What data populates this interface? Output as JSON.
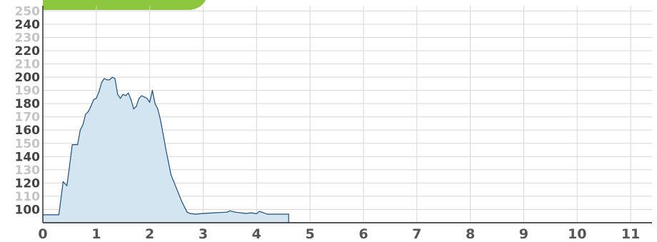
{
  "colors": {
    "accent_tab": "#8dc63f",
    "area_fill": "#d4e5f2",
    "area_stroke": "#1b4f7a",
    "grid": "#d7d7d7",
    "axis": "#222222"
  },
  "chart_data": {
    "type": "area",
    "title": "",
    "xlabel": "",
    "ylabel": "",
    "xlim": [
      0,
      11.4
    ],
    "ylim": [
      90,
      254
    ],
    "grid": true,
    "legend": "none",
    "x_ticks": [
      "0",
      "1",
      "2",
      "3",
      "4",
      "5",
      "6",
      "7",
      "8",
      "9",
      "10",
      "11"
    ],
    "y_ticks": [
      {
        "value": 100,
        "label": "100",
        "major": true
      },
      {
        "value": 110,
        "label": "110",
        "major": false
      },
      {
        "value": 120,
        "label": "120",
        "major": true
      },
      {
        "value": 130,
        "label": "130",
        "major": false
      },
      {
        "value": 140,
        "label": "140",
        "major": true
      },
      {
        "value": 150,
        "label": "150",
        "major": false
      },
      {
        "value": 160,
        "label": "160",
        "major": true
      },
      {
        "value": 170,
        "label": "170",
        "major": false
      },
      {
        "value": 180,
        "label": "180",
        "major": true
      },
      {
        "value": 190,
        "label": "190",
        "major": false
      },
      {
        "value": 200,
        "label": "200",
        "major": true
      },
      {
        "value": 210,
        "label": "210",
        "major": false
      },
      {
        "value": 220,
        "label": "220",
        "major": true
      },
      {
        "value": 230,
        "label": "230",
        "major": false
      },
      {
        "value": 240,
        "label": "240",
        "major": true
      },
      {
        "value": 250,
        "label": "250",
        "major": false
      }
    ],
    "x": [
      0,
      0.2,
      0.3,
      0.38,
      0.45,
      0.5,
      0.55,
      0.6,
      0.65,
      0.7,
      0.75,
      0.8,
      0.85,
      0.9,
      0.95,
      1.0,
      1.05,
      1.1,
      1.15,
      1.2,
      1.25,
      1.3,
      1.35,
      1.4,
      1.45,
      1.5,
      1.55,
      1.6,
      1.65,
      1.7,
      1.75,
      1.8,
      1.85,
      1.9,
      1.95,
      2.0,
      2.05,
      2.1,
      2.15,
      2.2,
      2.25,
      2.3,
      2.35,
      2.4,
      2.5,
      2.6,
      2.7,
      2.75,
      2.85,
      3.0,
      3.2,
      3.45,
      3.5,
      3.6,
      3.8,
      3.9,
      4.0,
      4.05,
      4.1,
      4.2,
      4.6
    ],
    "series": [
      {
        "values": [
          96,
          96,
          96,
          121,
          118,
          133,
          149,
          149,
          149,
          160,
          164,
          172,
          174,
          178,
          183,
          184,
          189,
          196,
          199,
          198,
          198,
          200,
          199,
          187,
          184,
          187,
          186,
          188,
          183,
          176,
          178,
          184,
          186,
          185,
          184,
          181,
          190,
          180,
          176,
          168,
          157,
          146,
          136,
          126,
          116,
          106,
          98,
          97,
          96.5,
          97,
          97.5,
          98,
          99,
          98,
          97,
          97.5,
          96.8,
          98.5,
          98,
          96.5,
          96.5
        ]
      }
    ]
  }
}
